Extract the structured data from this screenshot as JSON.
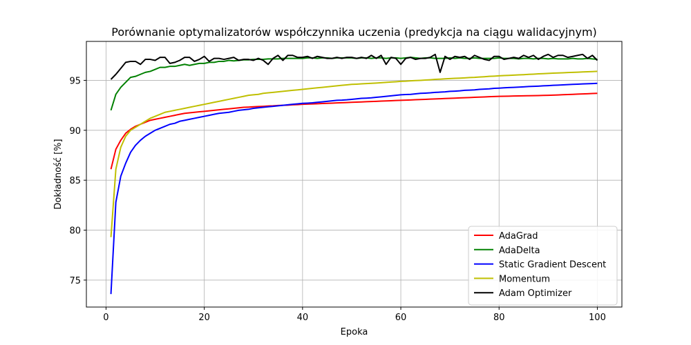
{
  "chart_data": {
    "type": "line",
    "title": "Porównanie optymalizatorów współczynnika uczenia (predykcja na ciągu walidacyjnym)",
    "xlabel": "Epoka",
    "ylabel": "Dokładność [%]",
    "xlim": [
      -4,
      105
    ],
    "ylim": [
      72.3,
      98.9
    ],
    "xticks": [
      0,
      20,
      40,
      60,
      80,
      100
    ],
    "yticks": [
      75,
      80,
      85,
      90,
      95
    ],
    "grid": true,
    "legend_position": "lower-right",
    "x": [
      1,
      2,
      3,
      4,
      5,
      6,
      7,
      8,
      9,
      10,
      11,
      12,
      13,
      14,
      15,
      16,
      17,
      18,
      19,
      20,
      21,
      22,
      23,
      24,
      25,
      26,
      27,
      28,
      29,
      30,
      31,
      32,
      33,
      34,
      35,
      36,
      37,
      38,
      39,
      40,
      41,
      42,
      43,
      44,
      45,
      46,
      47,
      48,
      49,
      50,
      51,
      52,
      53,
      54,
      55,
      56,
      57,
      58,
      59,
      60,
      61,
      62,
      63,
      64,
      65,
      66,
      67,
      68,
      69,
      70,
      71,
      72,
      73,
      74,
      75,
      76,
      77,
      78,
      79,
      80,
      81,
      82,
      83,
      84,
      85,
      86,
      87,
      88,
      89,
      90,
      91,
      92,
      93,
      94,
      95,
      96,
      97,
      98,
      99,
      100
    ],
    "series": [
      {
        "name": "AdaGrad",
        "color": "#ff0000",
        "values": [
          86.1,
          88.1,
          89.0,
          89.7,
          90.1,
          90.4,
          90.6,
          90.8,
          91.0,
          91.1,
          91.2,
          91.3,
          91.4,
          91.5,
          91.6,
          91.7,
          91.75,
          91.8,
          91.85,
          91.9,
          91.95,
          92.0,
          92.05,
          92.1,
          92.15,
          92.2,
          92.25,
          92.3,
          92.32,
          92.35,
          92.38,
          92.4,
          92.43,
          92.45,
          92.48,
          92.5,
          92.52,
          92.55,
          92.57,
          92.6,
          92.62,
          92.64,
          92.66,
          92.68,
          92.7,
          92.72,
          92.74,
          92.76,
          92.78,
          92.8,
          92.82,
          92.84,
          92.86,
          92.88,
          92.9,
          92.92,
          92.94,
          92.96,
          92.98,
          93.0,
          93.02,
          93.04,
          93.06,
          93.08,
          93.1,
          93.12,
          93.14,
          93.16,
          93.18,
          93.2,
          93.22,
          93.24,
          93.26,
          93.28,
          93.3,
          93.32,
          93.34,
          93.36,
          93.38,
          93.4,
          93.41,
          93.42,
          93.43,
          93.44,
          93.45,
          93.46,
          93.47,
          93.48,
          93.49,
          93.5,
          93.52,
          93.54,
          93.56,
          93.58,
          93.6,
          93.62,
          93.64,
          93.66,
          93.68,
          93.7
        ]
      },
      {
        "name": "AdaDelta",
        "color": "#008000",
        "values": [
          92.0,
          93.6,
          94.3,
          94.8,
          95.3,
          95.4,
          95.6,
          95.8,
          95.9,
          96.1,
          96.3,
          96.3,
          96.4,
          96.4,
          96.5,
          96.6,
          96.5,
          96.6,
          96.7,
          96.7,
          96.8,
          96.8,
          96.9,
          96.9,
          97.0,
          96.95,
          97.0,
          97.05,
          97.05,
          97.1,
          97.1,
          97.1,
          97.15,
          97.15,
          97.15,
          97.2,
          97.2,
          97.2,
          97.2,
          97.2,
          97.25,
          97.25,
          97.2,
          97.25,
          97.25,
          97.2,
          97.25,
          97.25,
          97.25,
          97.25,
          97.2,
          97.25,
          97.25,
          97.2,
          97.25,
          97.25,
          97.2,
          97.25,
          97.25,
          97.2,
          97.25,
          97.3,
          97.25,
          97.2,
          97.25,
          97.25,
          97.2,
          97.2,
          97.2,
          97.25,
          97.2,
          97.25,
          97.2,
          97.2,
          97.25,
          97.2,
          97.2,
          97.2,
          97.2,
          97.25,
          97.2,
          97.2,
          97.2,
          97.15,
          97.2,
          97.2,
          97.15,
          97.2,
          97.2,
          97.15,
          97.2,
          97.15,
          97.15,
          97.15,
          97.2,
          97.15,
          97.15,
          97.2,
          97.15,
          97.1
        ]
      },
      {
        "name": "Static Gradient Descent",
        "color": "#0000ff",
        "values": [
          73.6,
          82.8,
          85.4,
          86.7,
          87.8,
          88.5,
          89.0,
          89.4,
          89.7,
          90.0,
          90.2,
          90.4,
          90.6,
          90.7,
          90.9,
          91.0,
          91.1,
          91.2,
          91.3,
          91.4,
          91.5,
          91.6,
          91.7,
          91.75,
          91.8,
          91.9,
          92.0,
          92.05,
          92.1,
          92.2,
          92.25,
          92.3,
          92.35,
          92.4,
          92.45,
          92.5,
          92.55,
          92.6,
          92.65,
          92.7,
          92.72,
          92.75,
          92.8,
          92.85,
          92.9,
          92.95,
          93.0,
          93.02,
          93.05,
          93.1,
          93.15,
          93.2,
          93.22,
          93.25,
          93.3,
          93.35,
          93.4,
          93.45,
          93.5,
          93.55,
          93.58,
          93.6,
          93.65,
          93.7,
          93.72,
          93.75,
          93.8,
          93.82,
          93.85,
          93.9,
          93.92,
          93.95,
          94.0,
          94.02,
          94.05,
          94.1,
          94.12,
          94.15,
          94.2,
          94.22,
          94.25,
          94.28,
          94.3,
          94.32,
          94.35,
          94.38,
          94.4,
          94.42,
          94.45,
          94.47,
          94.5,
          94.52,
          94.55,
          94.57,
          94.6,
          94.62,
          94.64,
          94.66,
          94.68,
          94.7
        ]
      },
      {
        "name": "Momentum",
        "color": "#bfbf00",
        "values": [
          79.3,
          86.1,
          88.3,
          89.4,
          90.0,
          90.3,
          90.6,
          90.9,
          91.2,
          91.4,
          91.6,
          91.8,
          91.9,
          92.0,
          92.1,
          92.2,
          92.3,
          92.4,
          92.5,
          92.6,
          92.7,
          92.8,
          92.9,
          93.0,
          93.1,
          93.2,
          93.3,
          93.4,
          93.5,
          93.55,
          93.6,
          93.7,
          93.75,
          93.8,
          93.85,
          93.9,
          93.95,
          94.0,
          94.05,
          94.1,
          94.15,
          94.2,
          94.25,
          94.3,
          94.35,
          94.4,
          94.45,
          94.5,
          94.55,
          94.6,
          94.62,
          94.65,
          94.68,
          94.7,
          94.73,
          94.76,
          94.8,
          94.83,
          94.86,
          94.9,
          94.92,
          94.95,
          94.98,
          95.0,
          95.03,
          95.06,
          95.1,
          95.12,
          95.15,
          95.18,
          95.2,
          95.22,
          95.25,
          95.28,
          95.3,
          95.33,
          95.36,
          95.4,
          95.42,
          95.45,
          95.48,
          95.5,
          95.52,
          95.55,
          95.57,
          95.6,
          95.62,
          95.65,
          95.67,
          95.7,
          95.72,
          95.74,
          95.76,
          95.78,
          95.8,
          95.82,
          95.84,
          95.86,
          95.88,
          95.9
        ]
      },
      {
        "name": "Adam Optimizer",
        "color": "#000000",
        "values": [
          95.1,
          95.6,
          96.2,
          96.8,
          96.9,
          96.9,
          96.6,
          97.1,
          97.1,
          97.0,
          97.3,
          97.3,
          96.7,
          96.8,
          97.0,
          97.3,
          97.3,
          96.9,
          97.1,
          97.4,
          96.9,
          97.2,
          97.2,
          97.1,
          97.2,
          97.3,
          97.0,
          97.1,
          97.1,
          97.0,
          97.2,
          97.0,
          96.6,
          97.2,
          97.5,
          97.0,
          97.5,
          97.5,
          97.3,
          97.3,
          97.4,
          97.2,
          97.4,
          97.3,
          97.2,
          97.2,
          97.3,
          97.2,
          97.3,
          97.3,
          97.2,
          97.3,
          97.2,
          97.5,
          97.2,
          97.5,
          96.6,
          97.3,
          97.2,
          96.6,
          97.2,
          97.3,
          97.1,
          97.2,
          97.2,
          97.3,
          97.6,
          95.8,
          97.4,
          97.1,
          97.4,
          97.3,
          97.4,
          97.1,
          97.5,
          97.3,
          97.1,
          97.0,
          97.4,
          97.4,
          97.1,
          97.2,
          97.3,
          97.2,
          97.5,
          97.3,
          97.5,
          97.1,
          97.4,
          97.6,
          97.3,
          97.5,
          97.5,
          97.3,
          97.4,
          97.5,
          97.6,
          97.2,
          97.5,
          97.0
        ]
      }
    ]
  }
}
